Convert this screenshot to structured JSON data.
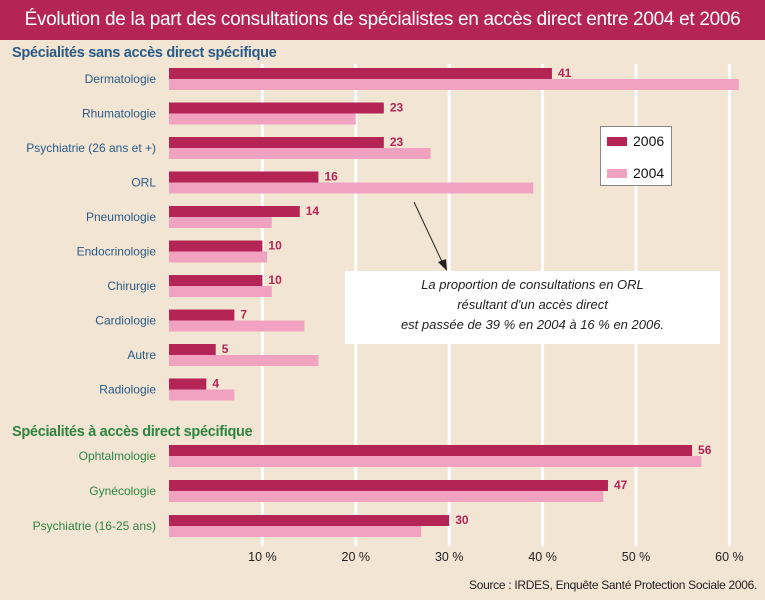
{
  "chart_data": {
    "type": "bar",
    "orientation": "horizontal",
    "title": "Évolution de la part des consultations de spécialistes en accès direct entre 2004 et 2006",
    "xlabel": "",
    "ylabel": "",
    "xlim": [
      0,
      62
    ],
    "ticks": [
      10,
      20,
      30,
      40,
      50,
      60
    ],
    "tick_labels": [
      "10 %",
      "20 %",
      "30 %",
      "40 %",
      "50 %",
      "60 %"
    ],
    "grid": true,
    "legend": {
      "placement": "right",
      "entries": [
        "2006",
        "2004"
      ]
    },
    "groups": [
      {
        "name": "Spécialités sans accès direct spécifique",
        "color": "#2a5b87",
        "categories": [
          "Dermatologie",
          "Rhumatologie",
          "Psychiatrie (26 ans et +)",
          "ORL",
          "Pneumologie",
          "Endocrinologie",
          "Chirurgie",
          "Cardiologie",
          "Autre",
          "Radiologie"
        ]
      },
      {
        "name": "Spécialités à accès direct spécifique",
        "color": "#2e8440",
        "categories": [
          "Ophtalmologie",
          "Gynécologie",
          "Psychiatrie (16-25 ans)"
        ]
      }
    ],
    "series": [
      {
        "name": "2006",
        "color": "#b42454",
        "values": [
          41,
          23,
          23,
          16,
          14,
          10,
          10,
          7,
          5,
          4,
          56,
          47,
          30
        ],
        "labels": [
          "41",
          "23",
          "23",
          "16",
          "14",
          "10",
          "10",
          "7",
          "5",
          "4",
          "56",
          "47",
          "30"
        ]
      },
      {
        "name": "2004",
        "color": "#f0a2c0",
        "values": [
          61,
          20,
          28,
          39,
          11,
          10.5,
          11,
          14.5,
          16,
          7,
          57,
          46.5,
          27
        ]
      }
    ],
    "annotation": [
      "La proportion de consultations en ORL",
      "résultant d'un accès direct",
      "est passée de 39 % en 2004 à 16 % en 2006."
    ],
    "source": "Source : IRDES, Enquête Santé Protection Sociale 2006."
  }
}
